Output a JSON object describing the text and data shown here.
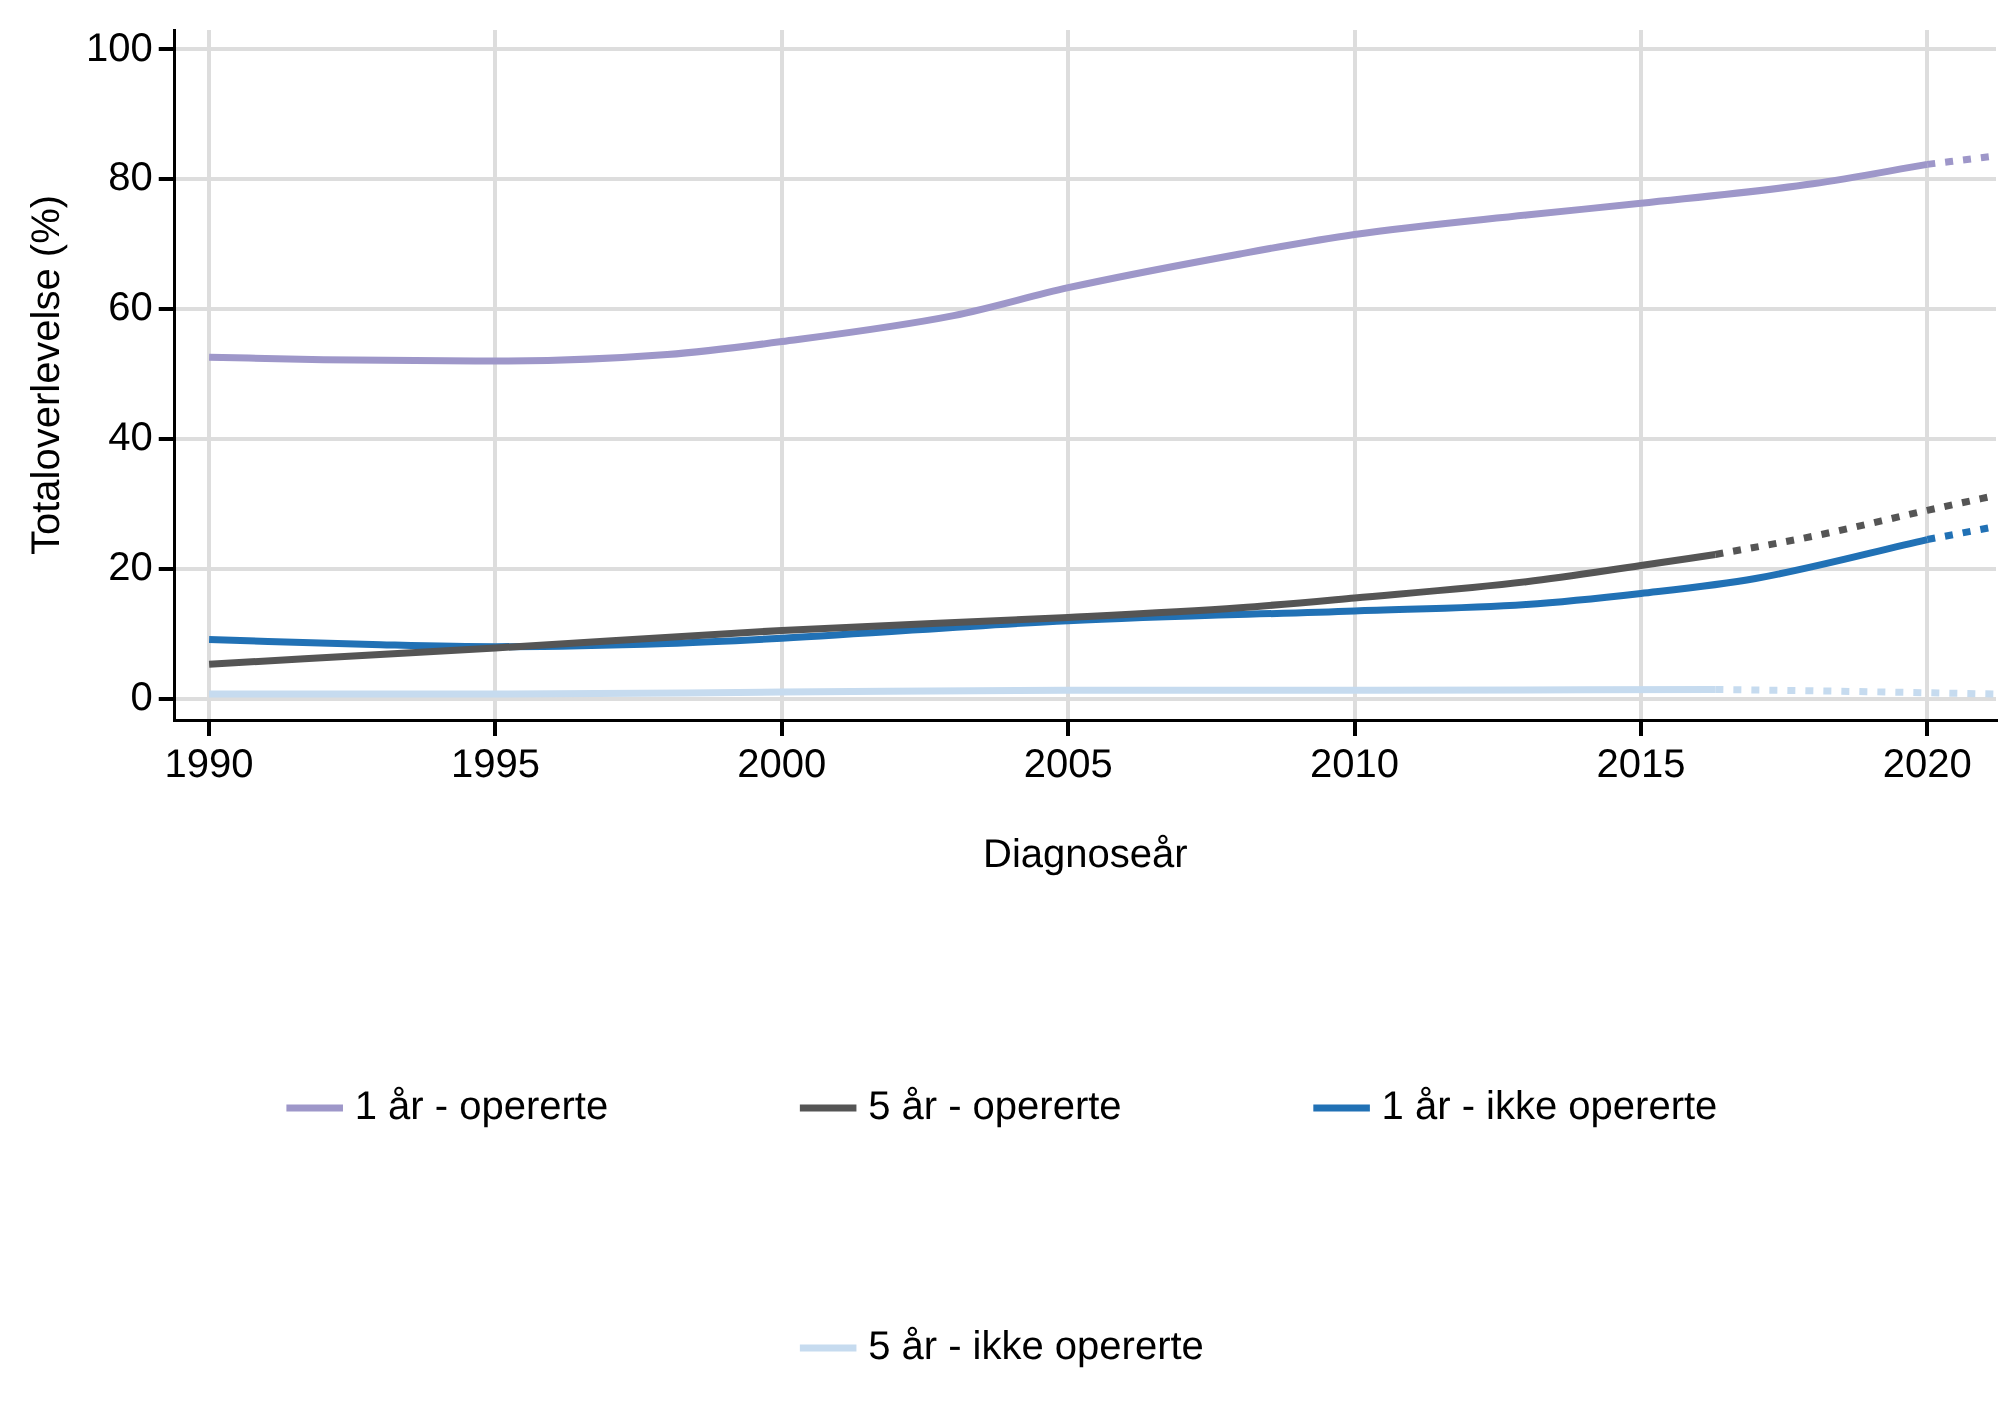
{
  "chart_data": {
    "type": "line",
    "xlabel": "Diagnoseår",
    "ylabel": "Totaloverlevelse (%)",
    "xlim": [
      1989.4,
      2021.2
    ],
    "xticks": [
      1990,
      1995,
      2000,
      2005,
      2010,
      2015,
      2020
    ],
    "ylim": [
      -3.3,
      103
    ],
    "yticks": [
      0,
      20,
      40,
      60,
      80,
      100
    ],
    "grid": true,
    "legend": "bottom",
    "marker": "none",
    "series": [
      {
        "name": "1 år - opererte",
        "color": "#9e97c9",
        "line_style": "solid",
        "x": [
          1990,
          1992,
          1995,
          1998,
          2000,
          2003,
          2005,
          2008,
          2010,
          2013,
          2015,
          2018,
          2020
        ],
        "values": [
          52.6,
          52.2,
          52,
          53,
          55,
          59,
          63.3,
          68.5,
          71.5,
          74.5,
          76.3,
          79.3,
          82.3
        ]
      },
      {
        "name": "5 år - opererte",
        "color": "#555555",
        "line_style": "solid",
        "x": [
          1990,
          1995,
          2000,
          2005,
          2008,
          2010,
          2013,
          2015,
          2016.3
        ],
        "values": [
          5.3,
          7.8,
          10.5,
          12.5,
          14,
          15.5,
          18,
          20.5,
          22.2
        ]
      },
      {
        "name": "1 år - ikke opererte",
        "color": "#2171b5",
        "line_style": "solid",
        "x": [
          1990,
          1993,
          1995,
          1998,
          2000,
          2005,
          2010,
          2013,
          2015,
          2017,
          2020
        ],
        "values": [
          9.1,
          8.3,
          8,
          8.5,
          9.3,
          12,
          13.5,
          14.5,
          16.2,
          18.5,
          24.5
        ]
      },
      {
        "name": "5 år - ikke opererte",
        "color": "#c6dbef",
        "line_style": "solid",
        "x": [
          1990,
          1995,
          2000,
          2005,
          2010,
          2016.3
        ],
        "values": [
          0.7,
          0.7,
          1,
          1.3,
          1.3,
          1.4
        ]
      },
      {
        "color": "#9e97c9",
        "line_style": "dotted",
        "x": [
          2020,
          2021.2
        ],
        "values": [
          82.3,
          83.6
        ]
      },
      {
        "color": "#555555",
        "line_style": "dotted",
        "x": [
          2016.3,
          2018,
          2020,
          2021.2
        ],
        "values": [
          22.2,
          25,
          29,
          31.3
        ]
      },
      {
        "color": "#2171b5",
        "line_style": "dotted",
        "x": [
          2020,
          2021.2
        ],
        "values": [
          24.5,
          26.5
        ]
      },
      {
        "color": "#c6dbef",
        "line_style": "dotted",
        "x": [
          2016.3,
          2018,
          2021.2
        ],
        "values": [
          1.4,
          1.2,
          0.7
        ]
      }
    ]
  }
}
